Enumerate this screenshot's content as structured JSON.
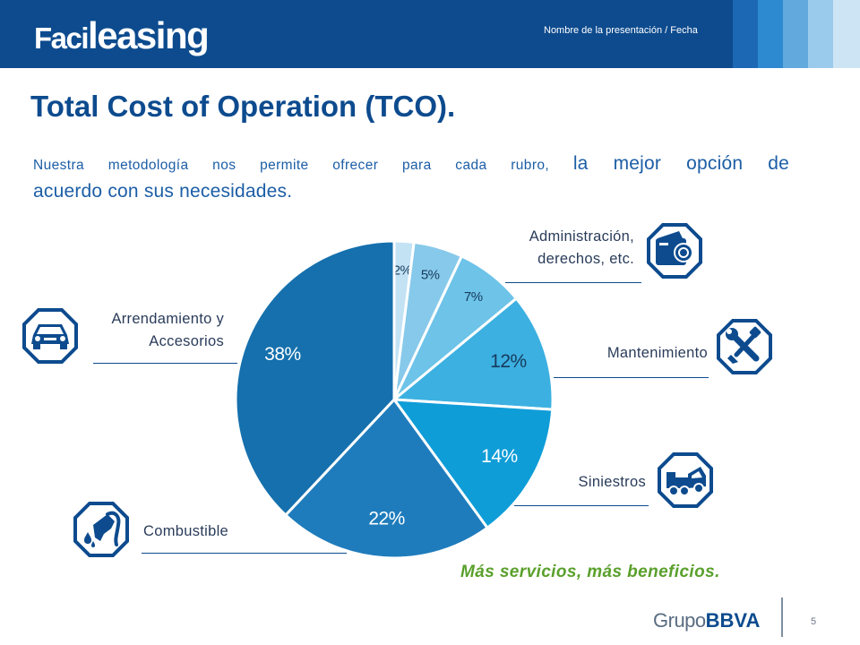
{
  "header": {
    "logo_part1": "Faci",
    "logo_part2": "leasing",
    "presentation_label": "Nombre de la presentación / Fecha"
  },
  "title": "Total Cost of Operation (TCO).",
  "intro": {
    "text_small": "Nuestra metodología nos permite ofrecer para cada rubro,",
    "text_big_1": "la mejor opción de",
    "text_big_2": "acuerdo con sus necesidades."
  },
  "categories": {
    "administracion_1": "Administración,",
    "administracion_2": "derechos, etc.",
    "mantenimiento": "Mantenimiento",
    "siniestros": "Siniestros",
    "arrendamiento_1": "Arrendamiento y",
    "arrendamiento_2": "Accesorios",
    "combustible": "Combustible"
  },
  "icons": {
    "administracion": "wallet-cash-icon",
    "mantenimiento": "wrench-tools-icon",
    "siniestros": "tow-truck-icon",
    "arrendamiento": "car-icon",
    "combustible": "fuel-nozzle-icon"
  },
  "chart_data": {
    "type": "pie",
    "title": "",
    "start": "12 o'clock",
    "direction": "clockwise",
    "slices": [
      {
        "name": "Slice 2%",
        "value": 2,
        "label": "2%",
        "color": "#c3e2f4",
        "text_color": "#173a5c"
      },
      {
        "name": "Slice 5%",
        "value": 5,
        "label": "5%",
        "color": "#87c9ea",
        "text_color": "#173a5c"
      },
      {
        "name": "Slice 7%",
        "value": 7,
        "label": "7%",
        "color": "#6dc3e8",
        "text_color": "#173a5c"
      },
      {
        "name": "Slice 12%",
        "value": 12,
        "label": "12%",
        "color": "#3cb0e1",
        "text_color": "#173a5c"
      },
      {
        "name": "Slice 14%",
        "value": 14,
        "label": "14%",
        "color": "#0f9dd8",
        "text_color": "#ffffff"
      },
      {
        "name": "Slice 22%",
        "value": 22,
        "label": "22%",
        "color": "#1f7cbc",
        "text_color": "#ffffff"
      },
      {
        "name": "Slice 38%",
        "value": 38,
        "label": "38%",
        "color": "#1570ad",
        "text_color": "#ffffff"
      }
    ]
  },
  "slogan": "Más servicios, más beneficios.",
  "footer": {
    "grupo": "Grupo",
    "bbva": "BBVA",
    "page_number": "5"
  },
  "colors": {
    "brand_blue": "#0d4b8e",
    "slogan_green": "#5aa02c",
    "stripe_1": "#1c68b5",
    "stripe_2": "#2e8ad0",
    "stripe_3": "#62a9de",
    "stripe_4": "#9acbec",
    "stripe_5": "#cde4f4"
  }
}
